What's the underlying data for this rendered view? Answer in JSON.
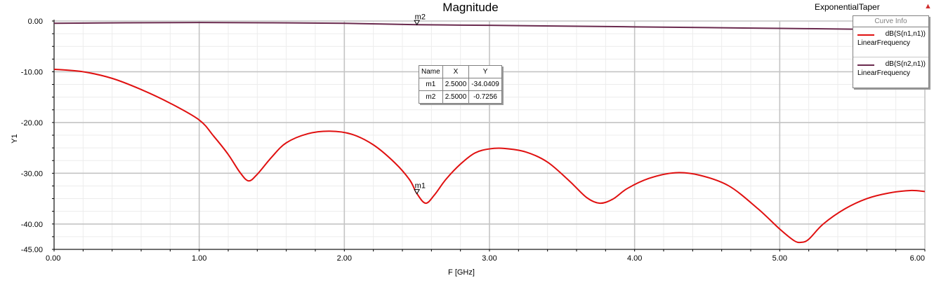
{
  "header": {
    "title": "Magnitude",
    "project": "ExponentialTaper"
  },
  "legend": {
    "title": "Curve Info",
    "items": [
      {
        "name": "dB(S(n1,n1))",
        "sub": "LinearFrequency",
        "color": "#e01010"
      },
      {
        "name": "dB(S(n2,n1))",
        "sub": "LinearFrequency",
        "color": "#6a2a4e"
      }
    ]
  },
  "marker_table": {
    "headers": [
      "Name",
      "X",
      "Y"
    ],
    "rows": [
      [
        "m1",
        "2.5000",
        "-34.0409"
      ],
      [
        "m2",
        "2.5000",
        "-0.7256"
      ]
    ]
  },
  "chart_data": {
    "type": "line",
    "title": "Magnitude",
    "xlabel": "F [GHz]",
    "ylabel": "Y1",
    "xlim": [
      0,
      6
    ],
    "ylim": [
      -45,
      0
    ],
    "xticks": [
      "0.00",
      "1.00",
      "2.00",
      "3.00",
      "4.00",
      "5.00",
      "6.00"
    ],
    "yticks": [
      "0.00",
      "-10.00",
      "-20.00",
      "-30.00",
      "-40.00",
      "-45.00"
    ],
    "ytick_values": [
      0,
      -10,
      -20,
      -30,
      -40,
      -45
    ],
    "grid": true,
    "legend_position": "top-right",
    "series": [
      {
        "name": "dB(S(n1,n1))",
        "color": "#e01010",
        "x": [
          0,
          0.2,
          0.4,
          0.6,
          0.8,
          1.0,
          1.1,
          1.2,
          1.28,
          1.34,
          1.4,
          1.5,
          1.6,
          1.75,
          1.9,
          2.05,
          2.2,
          2.35,
          2.45,
          2.5,
          2.56,
          2.62,
          2.7,
          2.8,
          2.9,
          3.0,
          3.1,
          3.25,
          3.4,
          3.55,
          3.67,
          3.76,
          3.85,
          3.95,
          4.1,
          4.28,
          4.45,
          4.65,
          4.85,
          5.0,
          5.1,
          5.15,
          5.2,
          5.3,
          5.45,
          5.6,
          5.75,
          5.9,
          6.0
        ],
        "y": [
          -9.5,
          -10.0,
          -11.3,
          -13.5,
          -16.2,
          -19.5,
          -22.7,
          -26.3,
          -29.8,
          -31.5,
          -30.2,
          -26.8,
          -24.0,
          -22.2,
          -21.7,
          -22.3,
          -24.4,
          -28.0,
          -31.3,
          -34.0,
          -35.9,
          -34.3,
          -31.2,
          -28.2,
          -26.0,
          -25.2,
          -25.1,
          -25.8,
          -27.8,
          -31.5,
          -34.8,
          -35.9,
          -35.1,
          -33.0,
          -31.0,
          -29.9,
          -30.4,
          -32.5,
          -37.0,
          -41.0,
          -43.3,
          -43.6,
          -43.0,
          -40.0,
          -37.0,
          -35.0,
          -33.9,
          -33.4,
          -33.6
        ]
      },
      {
        "name": "dB(S(n2,n1))",
        "color": "#6a2a4e",
        "x": [
          0,
          0.5,
          1.0,
          1.5,
          2.0,
          2.5,
          3.0,
          3.5,
          4.0,
          4.5,
          5.0,
          5.5,
          6.0
        ],
        "y": [
          -0.45,
          -0.35,
          -0.3,
          -0.35,
          -0.45,
          -0.73,
          -0.85,
          -1.0,
          -1.15,
          -1.3,
          -1.45,
          -1.6,
          -1.75
        ]
      }
    ],
    "markers": [
      {
        "name": "m1",
        "x": 2.5,
        "y": -34.0409
      },
      {
        "name": "m2",
        "x": 2.5,
        "y": -0.7256
      }
    ]
  }
}
